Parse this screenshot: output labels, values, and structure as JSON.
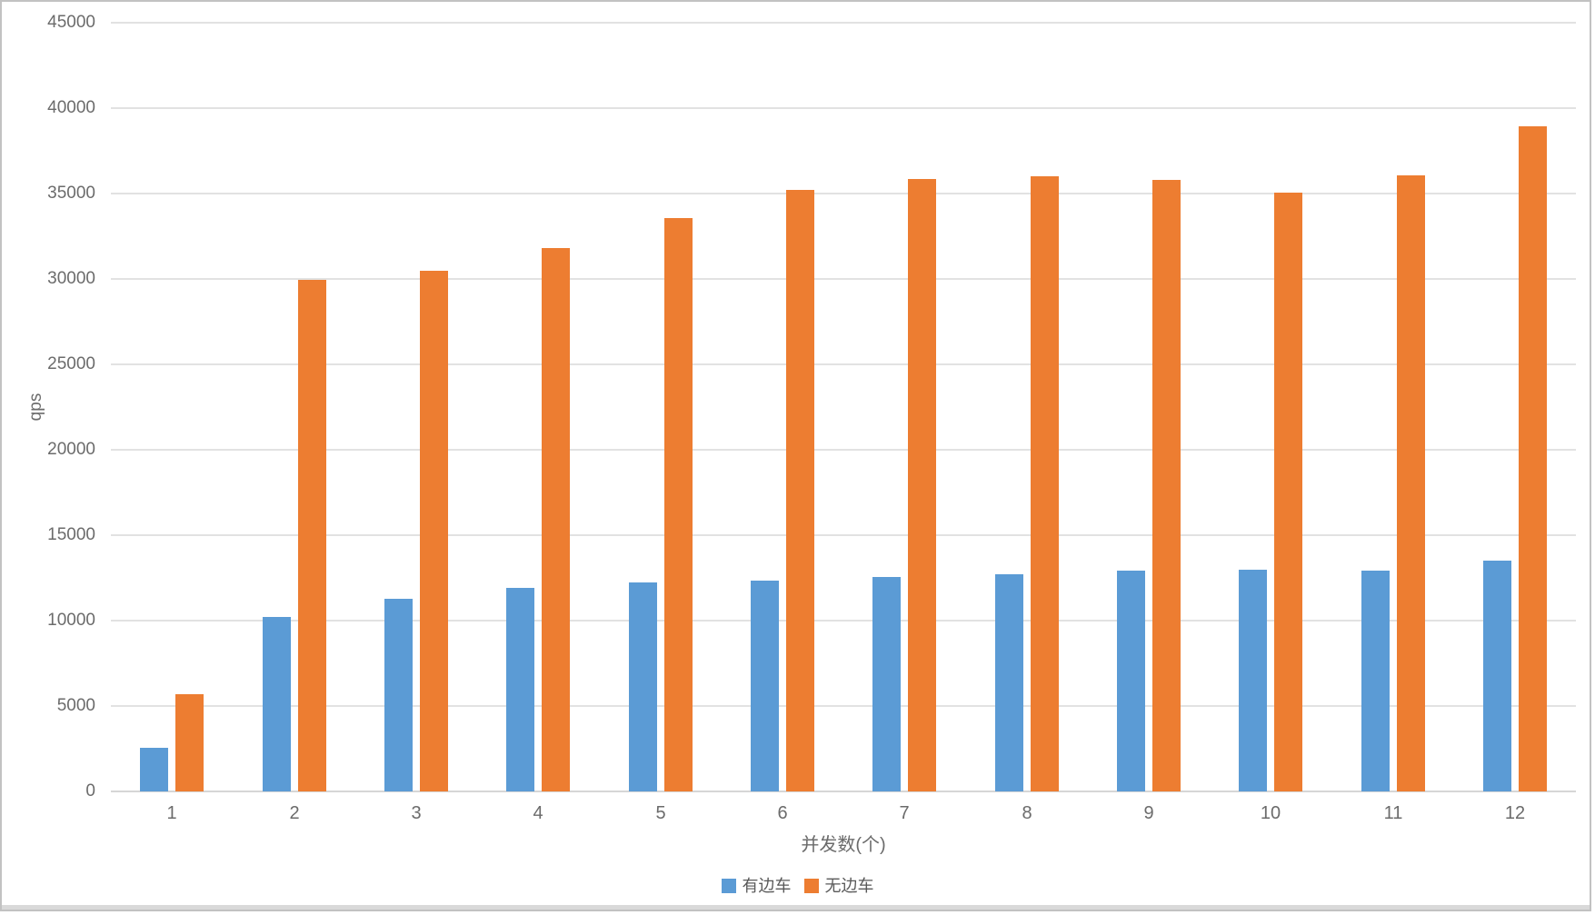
{
  "chart_data": {
    "type": "bar",
    "title": "",
    "xlabel": "并发数(个)",
    "ylabel": "qps",
    "categories": [
      "1",
      "2",
      "3",
      "4",
      "5",
      "6",
      "7",
      "8",
      "9",
      "10",
      "11",
      "12"
    ],
    "series": [
      {
        "name": "有边车",
        "color": "#5B9BD5",
        "values": [
          2550,
          10200,
          11300,
          11900,
          12250,
          12350,
          12550,
          12700,
          12950,
          13000,
          12950,
          13500
        ]
      },
      {
        "name": "无边车",
        "color": "#ED7D31",
        "values": [
          5700,
          29950,
          30500,
          31800,
          33550,
          35200,
          35850,
          36000,
          35800,
          35050,
          36050,
          38950
        ]
      }
    ],
    "ylim": [
      0,
      45000
    ],
    "yticks": [
      0,
      5000,
      10000,
      15000,
      20000,
      25000,
      30000,
      35000,
      40000,
      45000
    ],
    "grid": true,
    "legend_position": "bottom",
    "axis_text_color": "#6b6b6b",
    "gridline_color": "#e2e2e2"
  }
}
